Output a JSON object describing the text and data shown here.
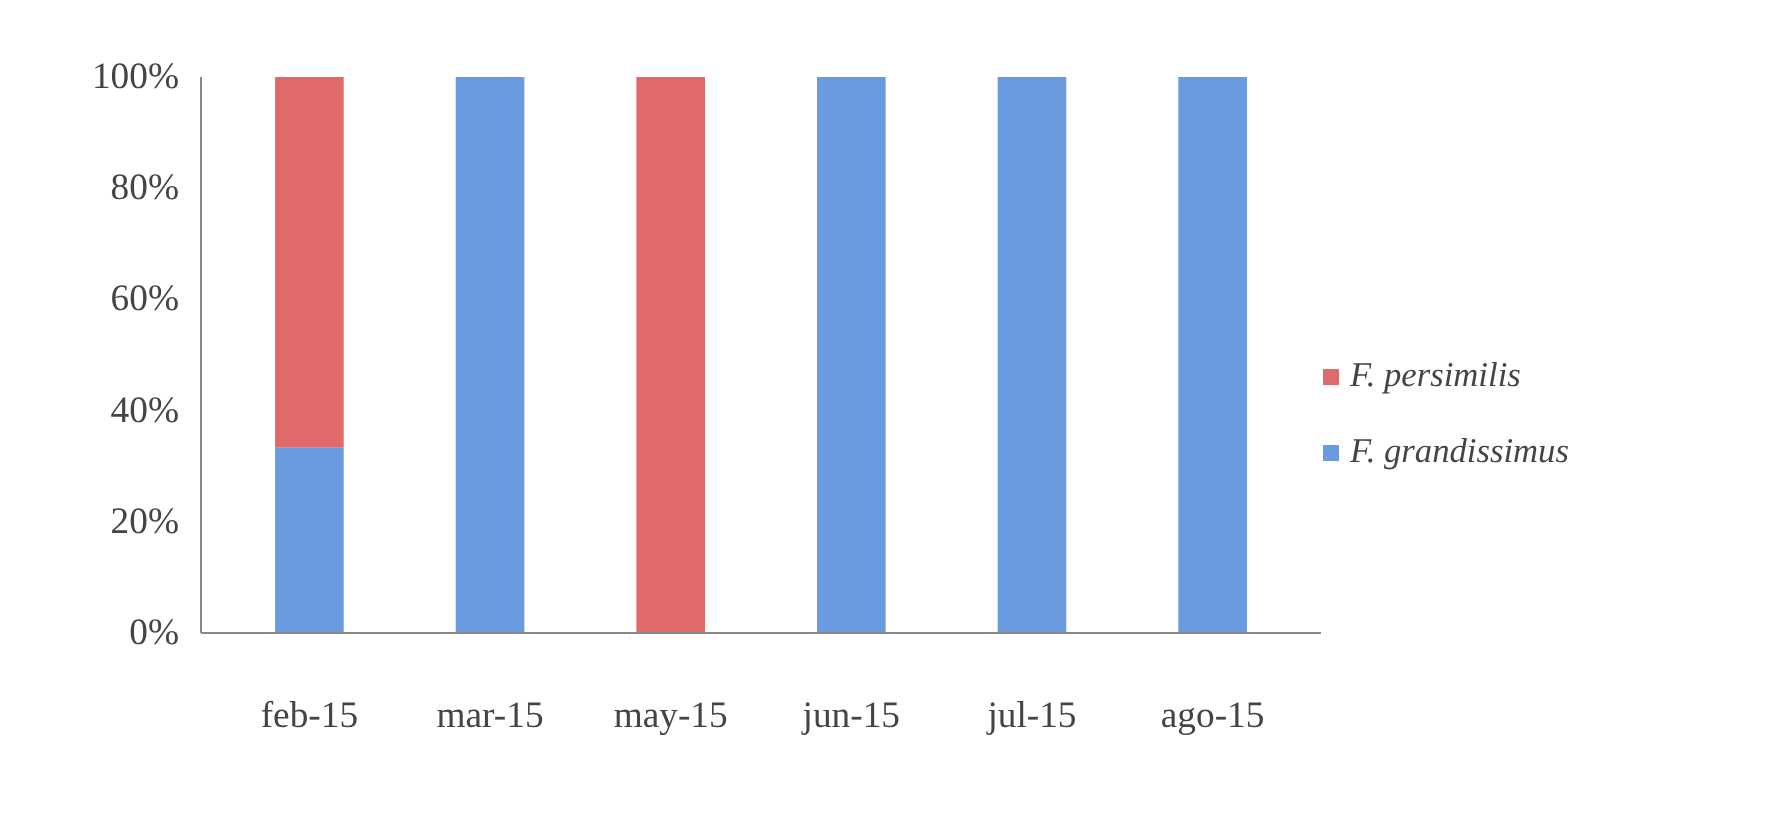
{
  "chart_data": {
    "type": "bar",
    "stacked": true,
    "categories": [
      "feb-15",
      "mar-15",
      "may-15",
      "jun-15",
      "jul-15",
      "ago-15"
    ],
    "series": [
      {
        "name": "F. grandissimus",
        "color": "#6a9be0",
        "values": [
          33.3,
          100,
          0,
          100,
          100,
          100
        ]
      },
      {
        "name": "F. persimilis",
        "color": "#e06a6a",
        "values": [
          66.7,
          0,
          100,
          0,
          0,
          0
        ]
      }
    ],
    "ylim": [
      0,
      100
    ],
    "yticks": [
      {
        "value": 0,
        "label": "0%"
      },
      {
        "value": 20,
        "label": "20%"
      },
      {
        "value": 40,
        "label": "40%"
      },
      {
        "value": 60,
        "label": "60%"
      },
      {
        "value": 80,
        "label": "80%"
      },
      {
        "value": 100,
        "label": "100%"
      }
    ],
    "grid": false,
    "legend": "right"
  }
}
